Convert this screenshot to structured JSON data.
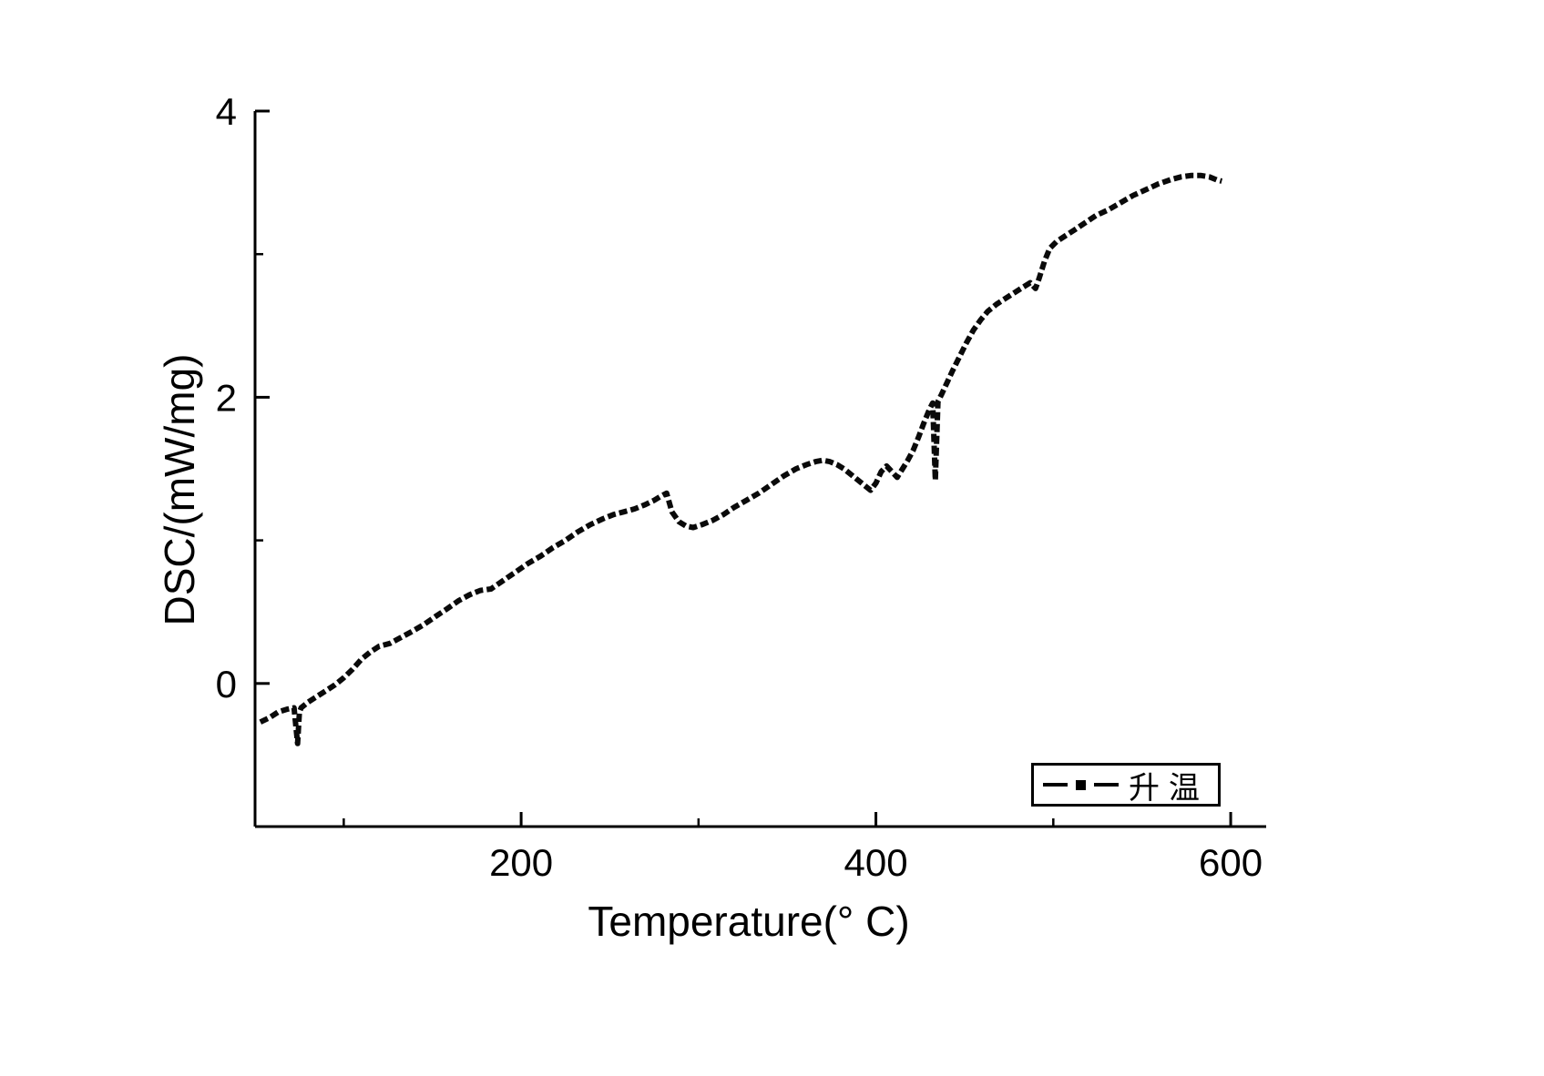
{
  "figure": {
    "background": "#ffffff",
    "axis_color": "#000000"
  },
  "chart_data": {
    "type": "line",
    "title": "",
    "xlabel": "Temperature(° C)",
    "ylabel": "DSC/(mW/mg)",
    "xlim": [
      50,
      620
    ],
    "ylim": [
      -1,
      4
    ],
    "x_major_ticks": [
      200,
      400,
      600
    ],
    "x_minor_ticks": [
      100,
      300,
      500
    ],
    "y_major_ticks": [
      0,
      2,
      4
    ],
    "y_minor_ticks": [
      1,
      3
    ],
    "grid": false,
    "legend": {
      "position": "bottom-right",
      "entries": [
        {
          "label": "升温",
          "marker": "filled-square",
          "line_style": "dash-dot",
          "color": "#000000"
        }
      ]
    },
    "series": [
      {
        "name": "升温",
        "color": "#0a0a0a",
        "x": [
          53,
          58,
          63,
          68,
          72,
          74,
          75,
          76,
          80,
          85,
          90,
          95,
          100,
          105,
          110,
          115,
          120,
          126,
          132,
          138,
          145,
          152,
          158,
          165,
          171,
          177,
          183,
          190,
          197,
          204,
          211,
          218,
          225,
          232,
          239,
          246,
          252,
          258,
          264,
          270,
          275,
          279,
          282,
          285,
          289,
          293,
          297,
          302,
          308,
          314,
          320,
          327,
          334,
          341,
          348,
          355,
          361,
          366,
          370,
          374,
          378,
          382,
          386,
          390,
          394,
          397,
          400,
          403,
          406,
          409,
          412,
          415,
          418,
          421,
          424,
          427,
          430,
          432,
          433.5,
          435,
          437,
          440,
          443,
          447,
          451,
          455,
          459,
          463,
          468,
          473,
          478,
          483,
          487,
          490,
          492,
          495,
          498,
          502,
          507,
          512,
          518,
          524,
          531,
          538,
          545,
          552,
          559,
          566,
          572,
          578,
          583,
          588,
          592,
          595
        ],
        "y": [
          -0.27,
          -0.24,
          -0.2,
          -0.18,
          -0.17,
          -0.42,
          -0.2,
          -0.17,
          -0.13,
          -0.09,
          -0.05,
          -0.01,
          0.04,
          0.1,
          0.17,
          0.22,
          0.26,
          0.28,
          0.32,
          0.36,
          0.41,
          0.47,
          0.52,
          0.58,
          0.62,
          0.65,
          0.66,
          0.72,
          0.78,
          0.84,
          0.89,
          0.95,
          1.0,
          1.06,
          1.11,
          1.15,
          1.18,
          1.2,
          1.22,
          1.25,
          1.28,
          1.31,
          1.33,
          1.2,
          1.13,
          1.1,
          1.09,
          1.11,
          1.14,
          1.18,
          1.23,
          1.28,
          1.33,
          1.39,
          1.45,
          1.5,
          1.53,
          1.55,
          1.56,
          1.55,
          1.53,
          1.5,
          1.46,
          1.42,
          1.38,
          1.35,
          1.4,
          1.48,
          1.52,
          1.48,
          1.44,
          1.5,
          1.56,
          1.63,
          1.72,
          1.82,
          1.91,
          1.96,
          1.42,
          1.97,
          2.02,
          2.1,
          2.18,
          2.28,
          2.38,
          2.47,
          2.54,
          2.6,
          2.65,
          2.69,
          2.73,
          2.77,
          2.8,
          2.76,
          2.83,
          2.95,
          3.04,
          3.09,
          3.13,
          3.17,
          3.22,
          3.27,
          3.31,
          3.36,
          3.41,
          3.45,
          3.49,
          3.52,
          3.54,
          3.55,
          3.55,
          3.54,
          3.52,
          3.51
        ]
      }
    ]
  }
}
